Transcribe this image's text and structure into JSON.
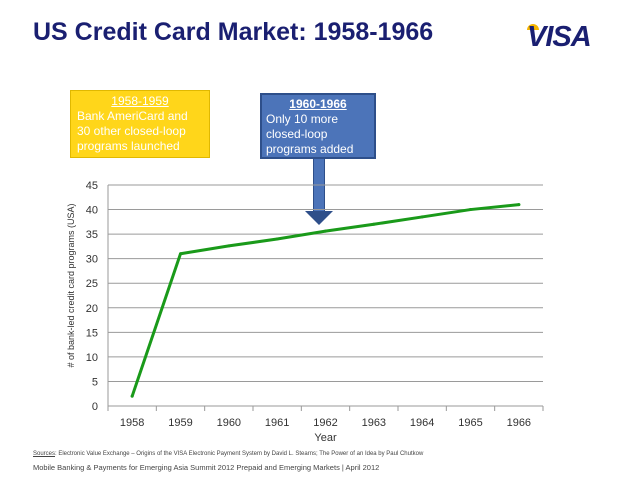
{
  "title": "US Credit Card Market: 1958-1966",
  "logo_text": "VISA",
  "colors": {
    "title": "#1a1f71",
    "line": "#1a9a1a",
    "callout_yellow": "#ffd61a",
    "callout_blue": "#4c74b9"
  },
  "callouts": {
    "yellow": {
      "title": "1958-1959",
      "lines": [
        "Bank AmeriCard and",
        "30 other closed-loop",
        "programs launched"
      ]
    },
    "blue": {
      "title": "1960-1966",
      "lines": [
        "Only 10 more",
        "closed-loop",
        "programs added"
      ]
    }
  },
  "chart_data": {
    "type": "line",
    "x": [
      1958,
      1959,
      1960,
      1961,
      1962,
      1963,
      1964,
      1965,
      1966
    ],
    "tick_labels": [
      "1958",
      "1959",
      "1960",
      "1961",
      "1962",
      "1963",
      "1964",
      "1965",
      "1966"
    ],
    "y_ticks": [
      0,
      5,
      10,
      15,
      20,
      25,
      30,
      35,
      40,
      45
    ],
    "values": [
      2,
      31,
      32.6,
      34,
      35.6,
      37,
      38.5,
      40,
      41
    ],
    "xlabel": "Year",
    "ylabel": "# of bank-led credit card programs (USA)",
    "ylim": [
      0,
      45
    ],
    "grid": true
  },
  "source": {
    "label": "Sources",
    "text": ": Electronic Value Exchange – Origins of the VISA Electronic Payment System by David L. Stearns; The Power of an Idea by Paul Chutkow"
  },
  "footer": "Mobile Banking & Payments for Emerging Asia Summit 2012 Prepaid and Emerging Markets | April 2012"
}
